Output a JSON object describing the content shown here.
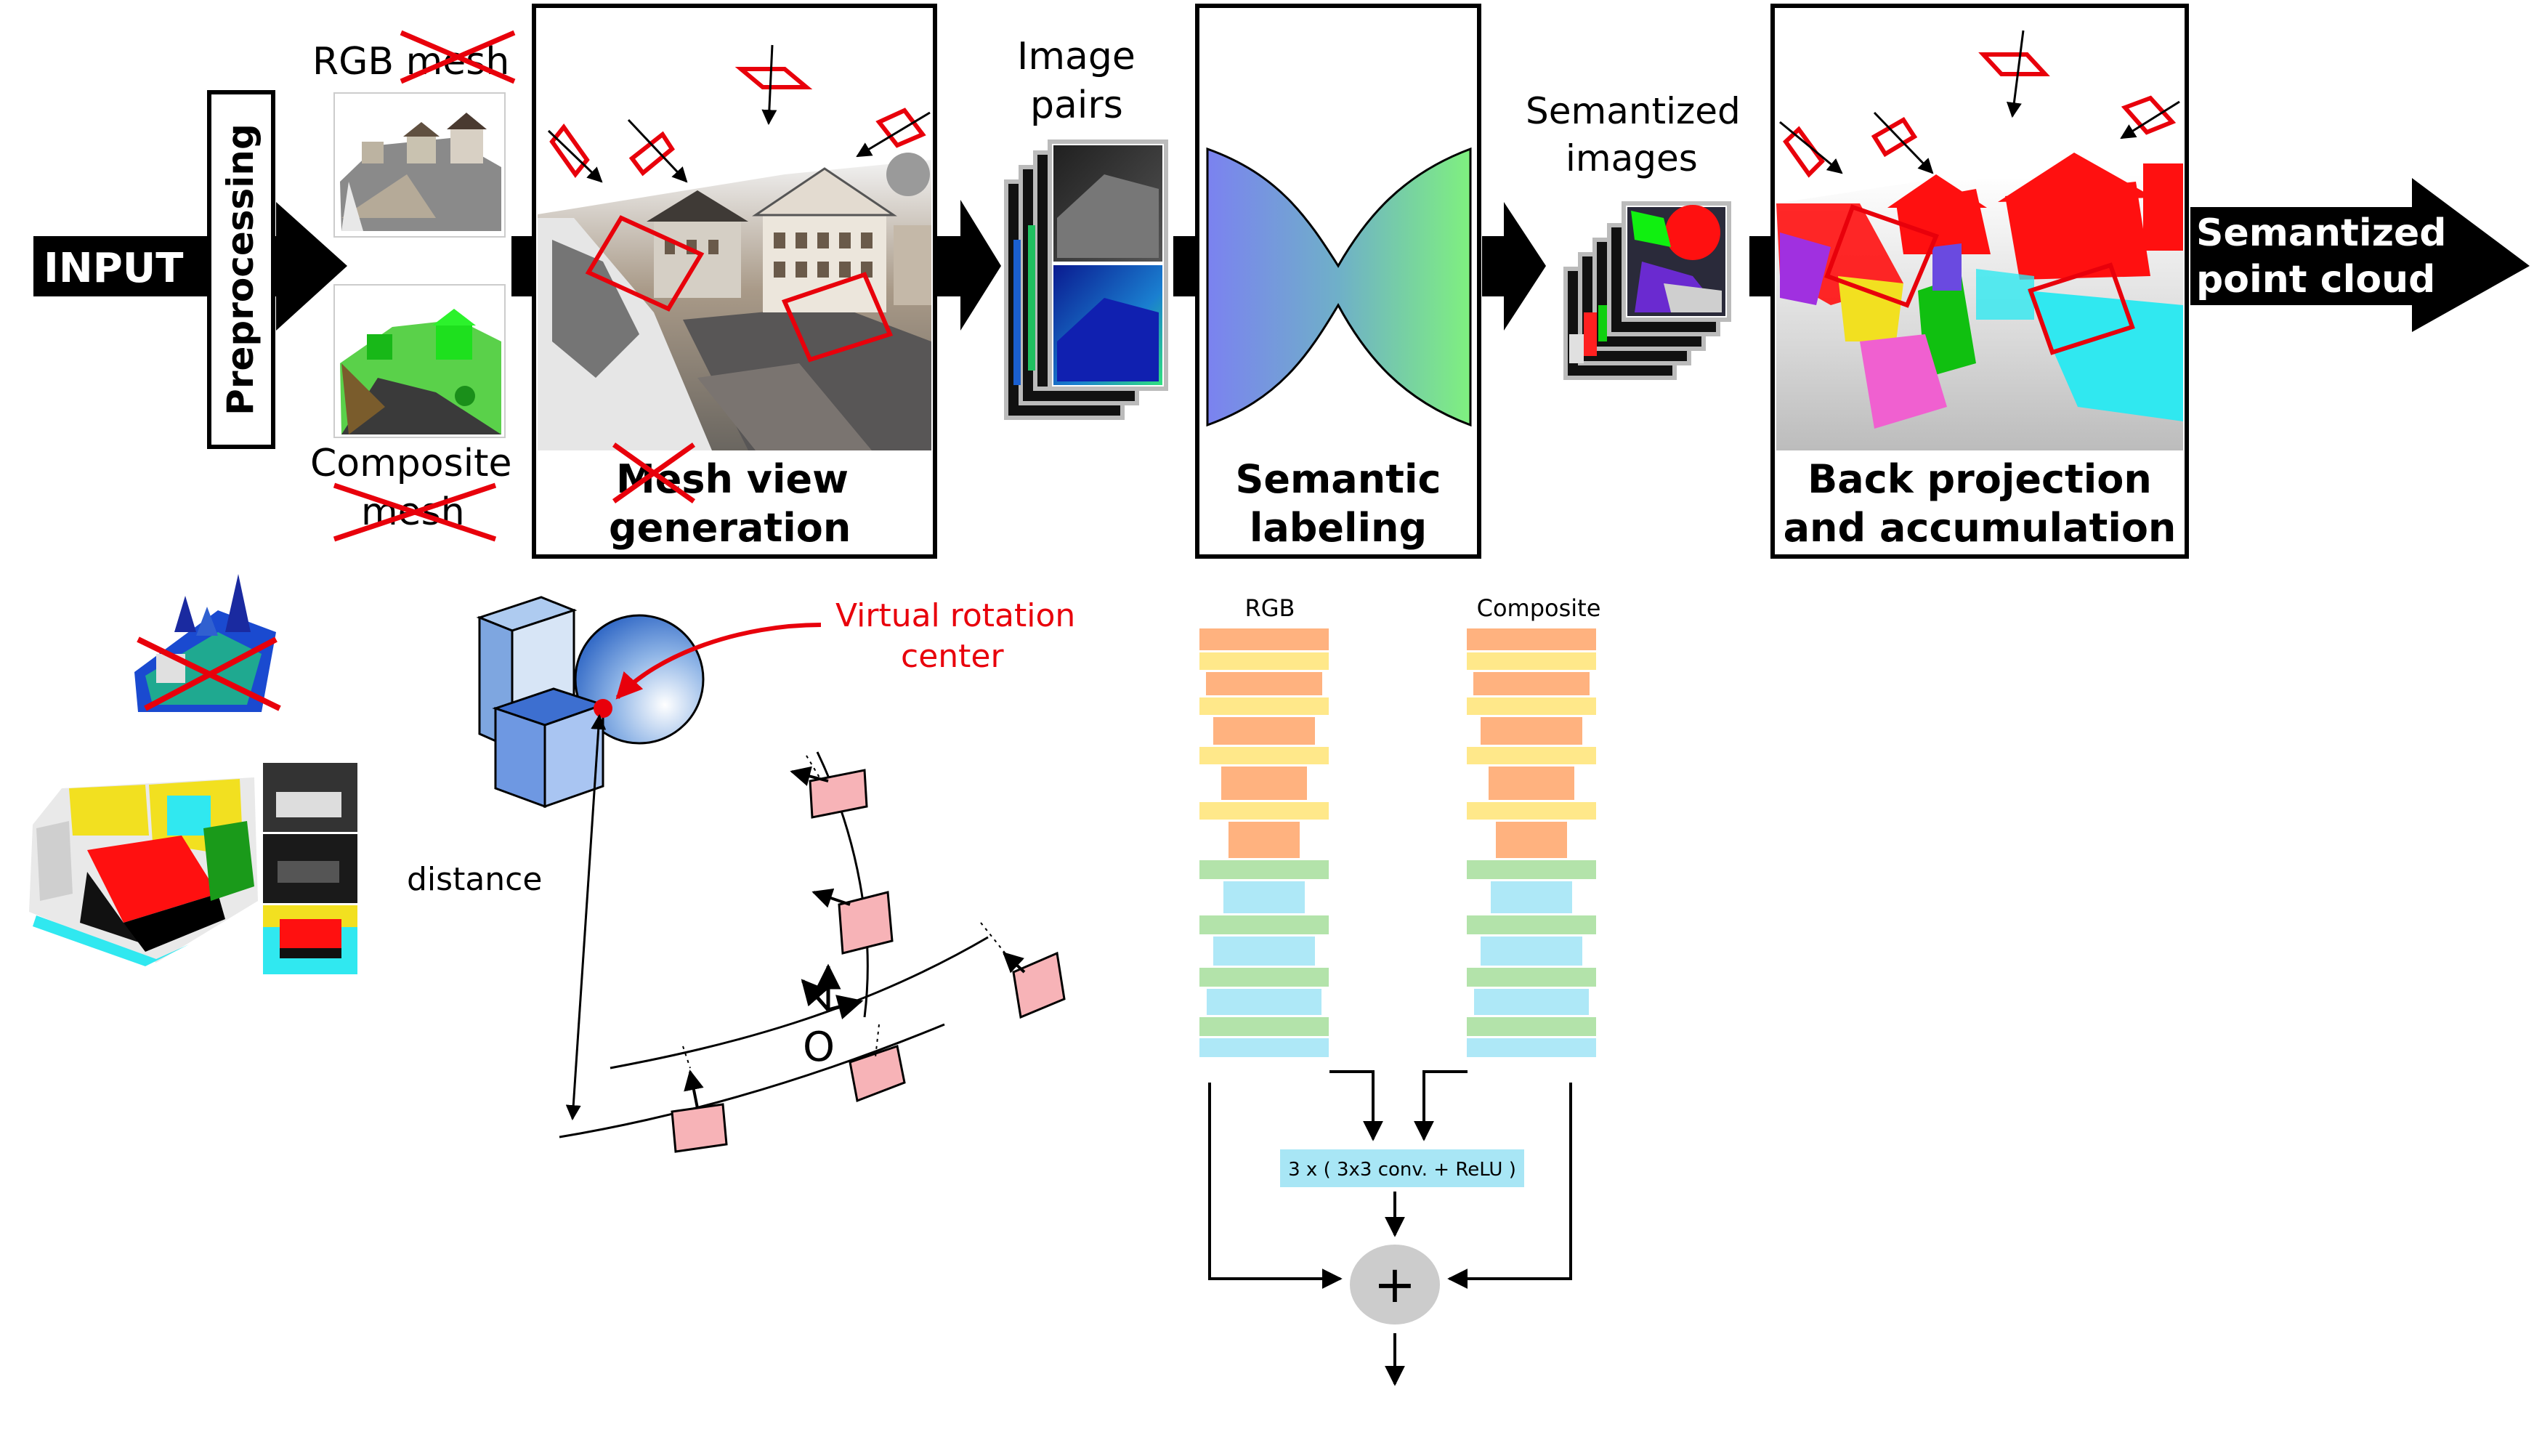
{
  "pipeline": {
    "input_label": "INPUT",
    "preprocessing_label": "Preprocessing",
    "rgb_mesh_label": "RGB mesh",
    "composite_mesh_label_line1": "Composite",
    "composite_mesh_label_line2": "mesh",
    "mesh_view_label_line1": "Mesh view",
    "mesh_view_label_line2": "generation",
    "image_pairs_line1": "Image",
    "image_pairs_line2": "pairs",
    "semantic_labeling_line1": "Semantic",
    "semantic_labeling_line2": "labeling",
    "semantized_images_line1": "Semantized",
    "semantized_images_line2": "images",
    "back_projection_line1": "Back projection",
    "back_projection_line2": "and accumulation",
    "output_line1": "Semantized",
    "output_line2": "point cloud"
  },
  "camera_diagram": {
    "virtual_rotation_line1": "Virtual rotation",
    "virtual_rotation_line2": "center",
    "distance_label": "distance",
    "origin_label": "O"
  },
  "network": {
    "rgb_label": "RGB",
    "composite_label": "Composite",
    "fusion_label": "3 x ( 3x3 conv. + ReLU )",
    "sum_symbol": "+"
  },
  "colors": {
    "crossout": "#ff0000",
    "annotation_red": "#e8000b",
    "orange_layer": "#ffb27f",
    "yellow_layer": "#ffe88a",
    "green_layer": "#b3e3aa",
    "cyan_layer": "#aee8f7",
    "fusion_box": "#a8e6f5",
    "camera_pink": "#f7b3b7"
  }
}
